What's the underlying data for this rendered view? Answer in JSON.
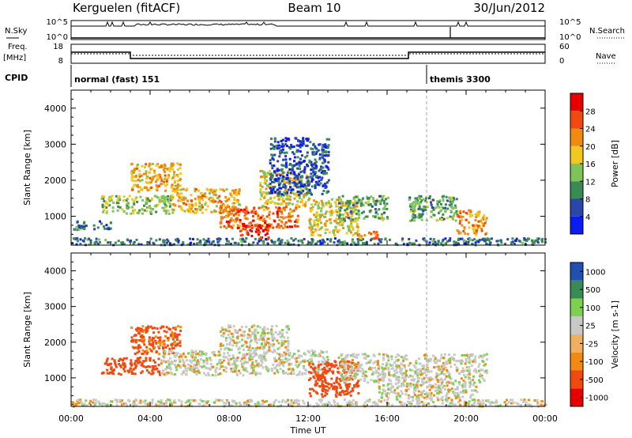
{
  "header": {
    "station": "Kerguelen (fitACF)",
    "beam": "Beam 10",
    "date": "30/Jun/2012"
  },
  "strips": {
    "nsky": {
      "label": "N.Sky",
      "tick_top": "10^5",
      "tick_bottom": "10^0",
      "right_label": "N.Search",
      "right_tick_top": "10^5",
      "right_tick_bottom": "10^0"
    },
    "freq": {
      "label": "Freq.",
      "unit": "[MHz]",
      "tick_top": "18",
      "tick_bottom": "8",
      "right_label": "Nave",
      "right_tick_top": "60",
      "right_tick_bottom": "0"
    },
    "cpid": {
      "label": "CPID",
      "entries": [
        {
          "text": "normal (fast) 151",
          "start_hour": 0
        },
        {
          "text": "themis 3300",
          "start_hour": 18
        }
      ]
    }
  },
  "colors": {
    "power": [
      "#0a1cf0",
      "#2847a8",
      "#3a8a55",
      "#7fc35a",
      "#f0c820",
      "#f08a10",
      "#f04a10",
      "#e80000"
    ],
    "velocity": [
      "#e80000",
      "#f04a10",
      "#f08a10",
      "#f0b060",
      "#c8c8c8",
      "#7fd050",
      "#3a8a55",
      "#2050b0"
    ],
    "gate_fill": "#b8b8b8"
  },
  "chart_data": [
    {
      "type": "heatmap",
      "panel": "power",
      "xlabel": "",
      "ylabel": "Slant Range [km]",
      "xlim": [
        0,
        24
      ],
      "ylim": [
        200,
        4500
      ],
      "yticks": [
        "1000",
        "2000",
        "3000",
        "4000"
      ],
      "colorbar": {
        "label": "Power [dB]",
        "range": [
          0,
          32
        ],
        "ticks": [
          "4",
          "8",
          "12",
          "16",
          "20",
          "24",
          "28"
        ]
      },
      "echo_regions": [
        {
          "t0": 0.0,
          "t1": 24.0,
          "r0": 230,
          "r1": 420,
          "level": 8
        },
        {
          "t0": 0.0,
          "t1": 2.0,
          "r0": 650,
          "r1": 900,
          "level": 8
        },
        {
          "t0": 1.5,
          "t1": 5.0,
          "r0": 1100,
          "r1": 1600,
          "level": 14
        },
        {
          "t0": 3.0,
          "t1": 5.5,
          "r0": 1700,
          "r1": 2500,
          "level": 20
        },
        {
          "t0": 5.0,
          "t1": 8.5,
          "r0": 1100,
          "r1": 1800,
          "level": 20
        },
        {
          "t0": 7.5,
          "t1": 11.5,
          "r0": 700,
          "r1": 1300,
          "level": 24
        },
        {
          "t0": 8.5,
          "t1": 10.0,
          "r0": 400,
          "r1": 800,
          "level": 28
        },
        {
          "t0": 9.5,
          "t1": 12.0,
          "r0": 1300,
          "r1": 2300,
          "level": 18
        },
        {
          "t0": 10.0,
          "t1": 13.0,
          "r0": 1600,
          "r1": 3200,
          "level": 6
        },
        {
          "t0": 12.0,
          "t1": 14.5,
          "r0": 500,
          "r1": 1500,
          "level": 18
        },
        {
          "t0": 14.0,
          "t1": 15.5,
          "r0": 400,
          "r1": 600,
          "level": 24
        },
        {
          "t0": 13.5,
          "t1": 16.0,
          "r0": 900,
          "r1": 1600,
          "level": 12
        },
        {
          "t0": 17.0,
          "t1": 19.5,
          "r0": 900,
          "r1": 1600,
          "level": 12
        },
        {
          "t0": 19.5,
          "t1": 21.0,
          "r0": 500,
          "r1": 1200,
          "level": 22
        }
      ]
    },
    {
      "type": "heatmap",
      "panel": "velocity",
      "xlabel": "Time UT",
      "ylabel": "Slant Range [km]",
      "xlim": [
        0,
        24
      ],
      "ylim": [
        200,
        4500
      ],
      "xticks": [
        "00:00",
        "04:00",
        "08:00",
        "12:00",
        "16:00",
        "20:00",
        "00:00"
      ],
      "yticks": [
        "1000",
        "2000",
        "3000",
        "4000"
      ],
      "colorbar": {
        "label": "Velocity [m s-1]",
        "ticks": [
          "1000",
          "500",
          "100",
          "25",
          "-25",
          "-100",
          "-500",
          "-1000"
        ]
      },
      "echo_regions": [
        {
          "t0": 0.0,
          "t1": 24.0,
          "r0": 230,
          "r1": 420,
          "level": 0
        },
        {
          "t0": 1.5,
          "t1": 4.5,
          "r0": 1100,
          "r1": 1600,
          "level": -150
        },
        {
          "t0": 3.0,
          "t1": 5.5,
          "r0": 1700,
          "r1": 2500,
          "level": -120
        },
        {
          "t0": 4.5,
          "t1": 13.0,
          "r0": 1100,
          "r1": 1800,
          "level": 0
        },
        {
          "t0": 7.5,
          "t1": 11.0,
          "r0": 1800,
          "r1": 2500,
          "level": 0
        },
        {
          "t0": 12.0,
          "t1": 14.5,
          "r0": 500,
          "r1": 1500,
          "level": -200
        },
        {
          "t0": 13.5,
          "t1": 21.0,
          "r0": 900,
          "r1": 1700,
          "level": 0
        },
        {
          "t0": 15.5,
          "t1": 20.5,
          "r0": 400,
          "r1": 900,
          "level": 0
        }
      ]
    }
  ]
}
